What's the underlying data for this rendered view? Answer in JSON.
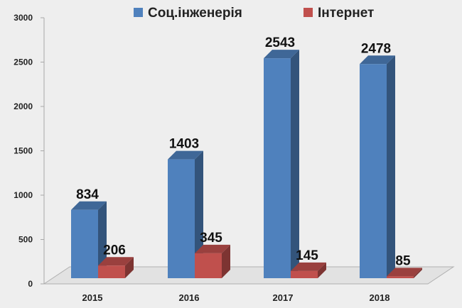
{
  "chart_data": {
    "type": "bar",
    "categories": [
      "2015",
      "2016",
      "2017",
      "2018"
    ],
    "series": [
      {
        "name": "Соц.інженерія",
        "values": [
          834,
          1403,
          2543,
          2478
        ],
        "color": "#4f81bd"
      },
      {
        "name": "Інтернет",
        "values": [
          206,
          345,
          145,
          85
        ],
        "color": "#c0504d"
      }
    ],
    "ylim": [
      0,
      3000
    ],
    "yticks": [
      "0",
      "500",
      "1000",
      "1500",
      "2000",
      "2500",
      "3000"
    ],
    "legend_position": "top",
    "grid": false,
    "style": "3d-clustered-bar"
  }
}
